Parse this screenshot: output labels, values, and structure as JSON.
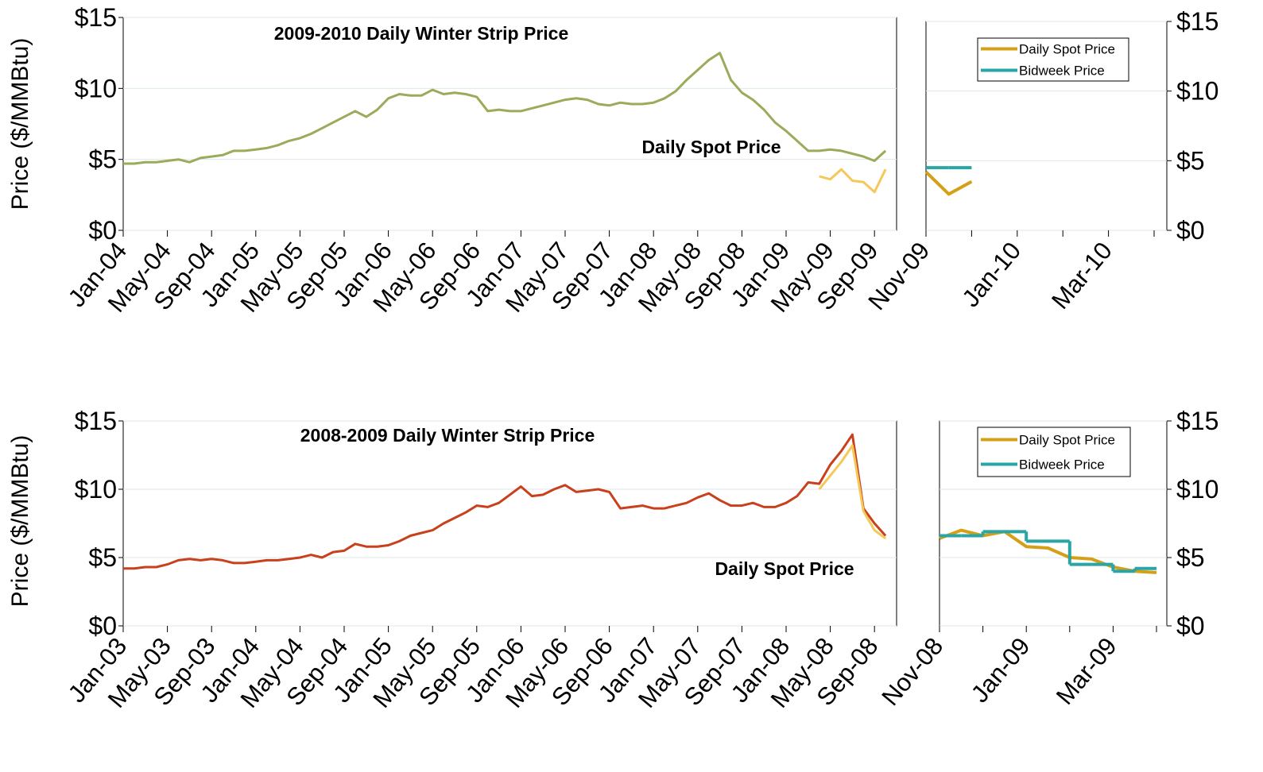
{
  "chart_data": [
    {
      "type": "line",
      "title": "2009-2010 Daily Winter Strip Price",
      "annotation": "Daily Spot Price",
      "y_label": "Price ($/MMBtu)",
      "categories": [
        "Jan-04",
        null,
        null,
        null,
        "May-04",
        null,
        null,
        null,
        "Sep-04",
        null,
        null,
        null,
        "Jan-05",
        null,
        null,
        null,
        "May-05",
        null,
        null,
        null,
        "Sep-05",
        null,
        null,
        null,
        "Jan-06",
        null,
        null,
        null,
        "May-06",
        null,
        null,
        null,
        "Sep-06",
        null,
        null,
        null,
        "Jan-07",
        null,
        null,
        null,
        "May-07",
        null,
        null,
        null,
        "Sep-07",
        null,
        null,
        null,
        "Jan-08",
        null,
        null,
        null,
        "May-08",
        null,
        null,
        null,
        "Sep-08",
        null,
        null,
        null,
        "Jan-09",
        null,
        null,
        null,
        "May-09",
        null,
        null,
        null,
        "Sep-09",
        null
      ],
      "series": [
        {
          "color": "#9aab5a",
          "values": [
            4.7,
            4.7,
            4.8,
            4.8,
            4.9,
            5.0,
            4.8,
            5.1,
            5.2,
            5.3,
            5.6,
            5.6,
            5.7,
            5.8,
            6.0,
            6.3,
            6.5,
            6.8,
            7.2,
            7.6,
            8.0,
            8.4,
            8.0,
            8.5,
            9.3,
            9.6,
            9.5,
            9.5,
            9.9,
            9.6,
            9.7,
            9.6,
            9.4,
            8.4,
            8.5,
            8.4,
            8.4,
            8.6,
            8.8,
            9.0,
            9.2,
            9.3,
            9.2,
            8.9,
            8.8,
            9.0,
            8.9,
            8.9,
            9.0,
            9.3,
            9.8,
            10.6,
            11.3,
            12.0,
            12.5,
            10.6,
            9.7,
            9.2,
            8.5,
            7.6,
            7.0,
            6.3,
            5.6,
            5.6,
            5.7,
            5.6,
            5.4,
            5.2,
            4.9,
            5.6
          ]
        },
        {
          "color": "#f5c85a",
          "values": [
            null,
            null,
            null,
            null,
            null,
            null,
            null,
            null,
            null,
            null,
            null,
            null,
            null,
            null,
            null,
            null,
            null,
            null,
            null,
            null,
            null,
            null,
            null,
            null,
            null,
            null,
            null,
            null,
            null,
            null,
            null,
            null,
            null,
            null,
            null,
            null,
            null,
            null,
            null,
            null,
            null,
            null,
            null,
            null,
            null,
            null,
            null,
            null,
            null,
            null,
            null,
            null,
            null,
            null,
            null,
            null,
            null,
            null,
            null,
            null,
            null,
            null,
            null,
            3.8,
            3.6,
            4.3,
            3.5,
            3.4,
            2.7,
            4.3
          ]
        }
      ],
      "ylim": [
        0,
        15
      ],
      "yticks": [
        {
          "value": 0,
          "label": "$0"
        },
        {
          "value": 5,
          "label": "$5"
        },
        {
          "value": 10,
          "label": "$10"
        },
        {
          "value": 15,
          "label": "$15"
        }
      ],
      "grid": true
    },
    {
      "type": "line",
      "legend": "upper right",
      "categories": [
        "Nov-09",
        null,
        null,
        null,
        "Jan-10",
        null,
        null,
        null,
        "Mar-10",
        null,
        null
      ],
      "series": [
        {
          "name": "Daily Spot Price",
          "color": "#d4a017",
          "values": [
            4.2,
            2.6,
            3.5,
            null,
            null,
            null,
            null,
            null,
            null,
            null,
            null
          ]
        },
        {
          "name": "Bidweek Price",
          "color": "#2aa5a5",
          "step": true,
          "values": [
            4.5,
            4.5,
            null,
            null,
            null,
            null,
            null,
            null,
            null,
            null,
            null
          ]
        }
      ],
      "ylim": [
        0,
        15
      ],
      "yticks": [
        {
          "value": 0,
          "label": "$0"
        },
        {
          "value": 5,
          "label": "$5"
        },
        {
          "value": 10,
          "label": "$10"
        },
        {
          "value": 15,
          "label": "$15"
        }
      ],
      "grid": true
    },
    {
      "type": "line",
      "title": "2008-2009 Daily Winter Strip Price",
      "annotation": "Daily Spot Price",
      "y_label": "Price ($/MMBtu)",
      "categories": [
        "Jan-03",
        null,
        null,
        null,
        "May-03",
        null,
        null,
        null,
        "Sep-03",
        null,
        null,
        null,
        "Jan-04",
        null,
        null,
        null,
        "May-04",
        null,
        null,
        null,
        "Sep-04",
        null,
        null,
        null,
        "Jan-05",
        null,
        null,
        null,
        "May-05",
        null,
        null,
        null,
        "Sep-05",
        null,
        null,
        null,
        "Jan-06",
        null,
        null,
        null,
        "May-06",
        null,
        null,
        null,
        "Sep-06",
        null,
        null,
        null,
        "Jan-07",
        null,
        null,
        null,
        "May-07",
        null,
        null,
        null,
        "Sep-07",
        null,
        null,
        null,
        "Jan-08",
        null,
        null,
        null,
        "May-08",
        null,
        null,
        null,
        "Sep-08",
        null
      ],
      "series": [
        {
          "color": "#c8401c",
          "values": [
            4.2,
            4.2,
            4.3,
            4.3,
            4.5,
            4.8,
            4.9,
            4.8,
            4.9,
            4.8,
            4.6,
            4.6,
            4.7,
            4.8,
            4.8,
            4.9,
            5.0,
            5.2,
            5.0,
            5.4,
            5.5,
            6.0,
            5.8,
            5.8,
            5.9,
            6.2,
            6.6,
            6.8,
            7.0,
            7.5,
            7.9,
            8.3,
            8.8,
            8.7,
            9.0,
            9.6,
            10.2,
            9.5,
            9.6,
            10.0,
            10.3,
            9.8,
            9.9,
            10.0,
            9.8,
            8.6,
            8.7,
            8.8,
            8.6,
            8.6,
            8.8,
            9.0,
            9.4,
            9.7,
            9.2,
            8.8,
            8.8,
            9.0,
            8.7,
            8.7,
            9.0,
            9.5,
            10.5,
            10.4,
            11.8,
            12.8,
            14.0,
            8.6,
            7.5,
            6.6
          ]
        },
        {
          "color": "#f5c85a",
          "values": [
            null,
            null,
            null,
            null,
            null,
            null,
            null,
            null,
            null,
            null,
            null,
            null,
            null,
            null,
            null,
            null,
            null,
            null,
            null,
            null,
            null,
            null,
            null,
            null,
            null,
            null,
            null,
            null,
            null,
            null,
            null,
            null,
            null,
            null,
            null,
            null,
            null,
            null,
            null,
            null,
            null,
            null,
            null,
            null,
            null,
            null,
            null,
            null,
            null,
            null,
            null,
            null,
            null,
            null,
            null,
            null,
            null,
            null,
            null,
            null,
            null,
            null,
            null,
            10.0,
            11.0,
            12.0,
            13.2,
            8.4,
            7.0,
            6.4
          ]
        }
      ],
      "ylim": [
        0,
        15
      ],
      "yticks": [
        {
          "value": 0,
          "label": "$0"
        },
        {
          "value": 5,
          "label": "$5"
        },
        {
          "value": 10,
          "label": "$10"
        },
        {
          "value": 15,
          "label": "$15"
        }
      ],
      "grid": true
    },
    {
      "type": "line",
      "legend": "upper right",
      "categories": [
        "Nov-08",
        null,
        null,
        null,
        "Jan-09",
        null,
        null,
        null,
        "Mar-09",
        null,
        null
      ],
      "series": [
        {
          "name": "Daily Spot Price",
          "color": "#d4a017",
          "values": [
            6.4,
            7.0,
            6.6,
            6.9,
            5.8,
            5.7,
            5.0,
            4.9,
            4.3,
            4.0,
            3.9
          ]
        },
        {
          "name": "Bidweek Price",
          "color": "#2aa5a5",
          "step": true,
          "values": [
            6.6,
            6.6,
            6.9,
            6.9,
            6.2,
            6.2,
            4.5,
            4.5,
            4.0,
            4.2,
            null
          ]
        }
      ],
      "ylim": [
        0,
        15
      ],
      "yticks": [
        {
          "value": 0,
          "label": "$0"
        },
        {
          "value": 5,
          "label": "$5"
        },
        {
          "value": 10,
          "label": "$10"
        },
        {
          "value": 15,
          "label": "$15"
        }
      ],
      "grid": true
    }
  ]
}
